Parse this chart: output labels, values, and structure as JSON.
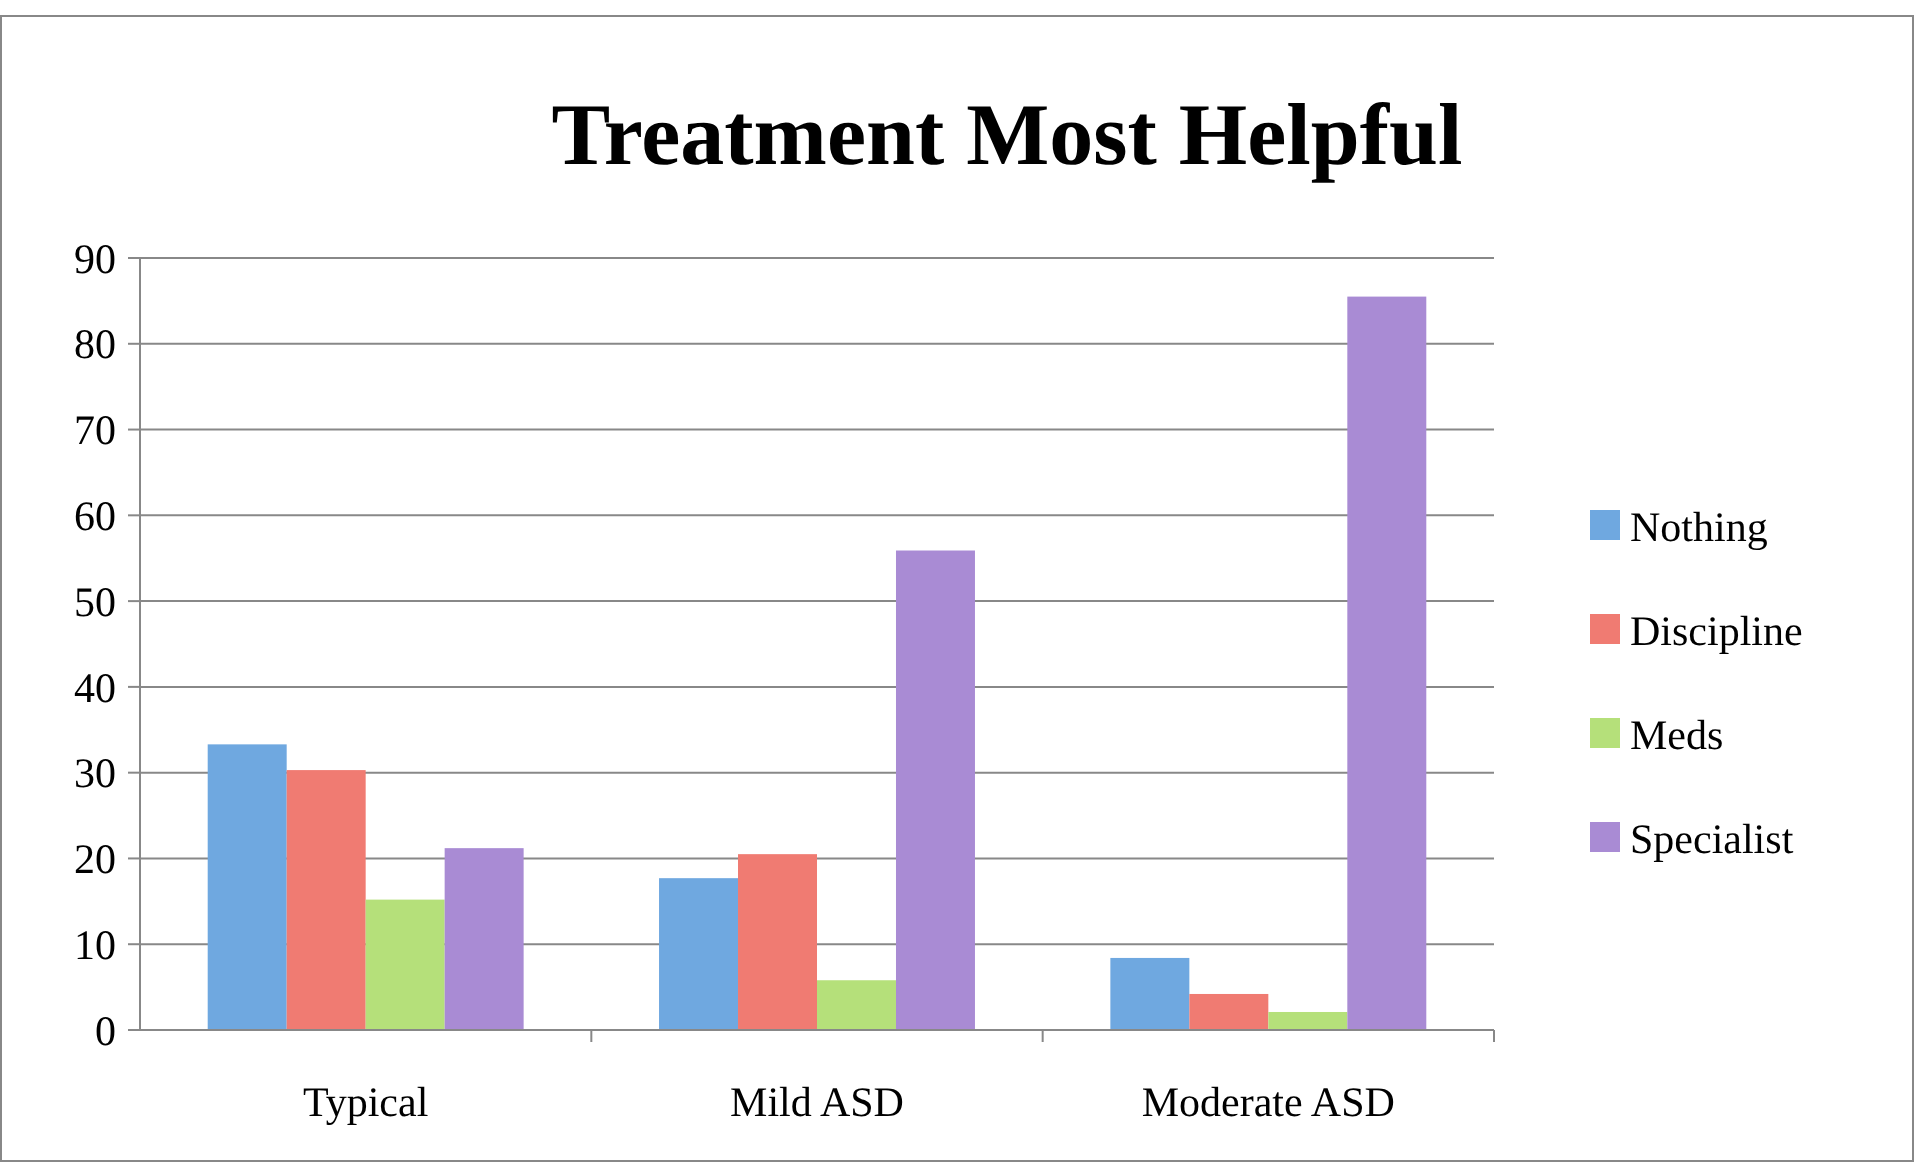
{
  "chart_data": {
    "type": "bar",
    "title": "Treatment Most Helpful",
    "categories": [
      "Typical",
      "Mild ASD",
      "Moderate ASD"
    ],
    "series": [
      {
        "name": "Nothing",
        "color": "#6fa8e0",
        "values": [
          33.3,
          17.7,
          8.4
        ]
      },
      {
        "name": "Discipline",
        "color": "#f07b72",
        "values": [
          30.3,
          20.5,
          4.2
        ]
      },
      {
        "name": "Meds",
        "color": "#b5e07a",
        "values": [
          15.2,
          5.8,
          2.1
        ]
      },
      {
        "name": "Specialist",
        "color": "#a98bd4",
        "values": [
          21.2,
          55.9,
          85.5
        ]
      }
    ],
    "ylim": [
      0,
      90
    ],
    "yticks": [
      0,
      10,
      20,
      30,
      40,
      50,
      60,
      70,
      80,
      90
    ],
    "grid": "y",
    "legend": "right"
  }
}
